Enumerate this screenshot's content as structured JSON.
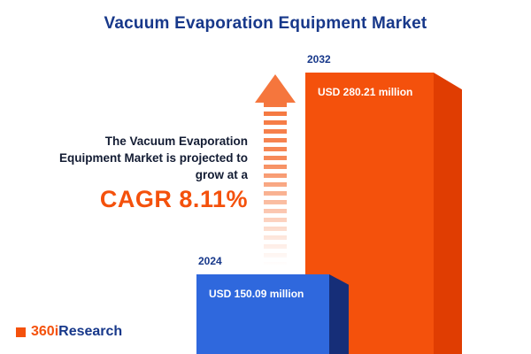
{
  "title": "Vacuum Evaporation Equipment Market",
  "description": {
    "line1": "The Vacuum Evaporation",
    "line2": "Equipment Market is projected to",
    "line3": "grow at a",
    "cagr_text": "CAGR 8.11%"
  },
  "chart_data": {
    "type": "bar",
    "title": "Vacuum Evaporation Equipment Market",
    "categories": [
      "2024",
      "2032"
    ],
    "values": [
      150.09,
      280.21
    ],
    "unit": "USD million",
    "value_labels": [
      "USD 150.09 million",
      "USD 280.21 million"
    ],
    "cagr": "8.11%",
    "bar_colors": [
      "#2f68dd",
      "#f4510c"
    ],
    "legend": "none",
    "ylim": [
      0,
      300
    ],
    "annotations": [
      "growth arrow pointing up between text and bars"
    ]
  },
  "logo": {
    "prefix": "360i",
    "suffix": "Research"
  },
  "colors": {
    "title_blue": "#17388a",
    "accent_orange": "#f4510c",
    "bar_blue": "#2f68dd",
    "bar_blue_side": "#162e78",
    "bar_orange": "#f4510c",
    "bar_orange_side": "#e03d02",
    "arrow_orange": "#f5763d",
    "text_dark": "#131c33"
  }
}
